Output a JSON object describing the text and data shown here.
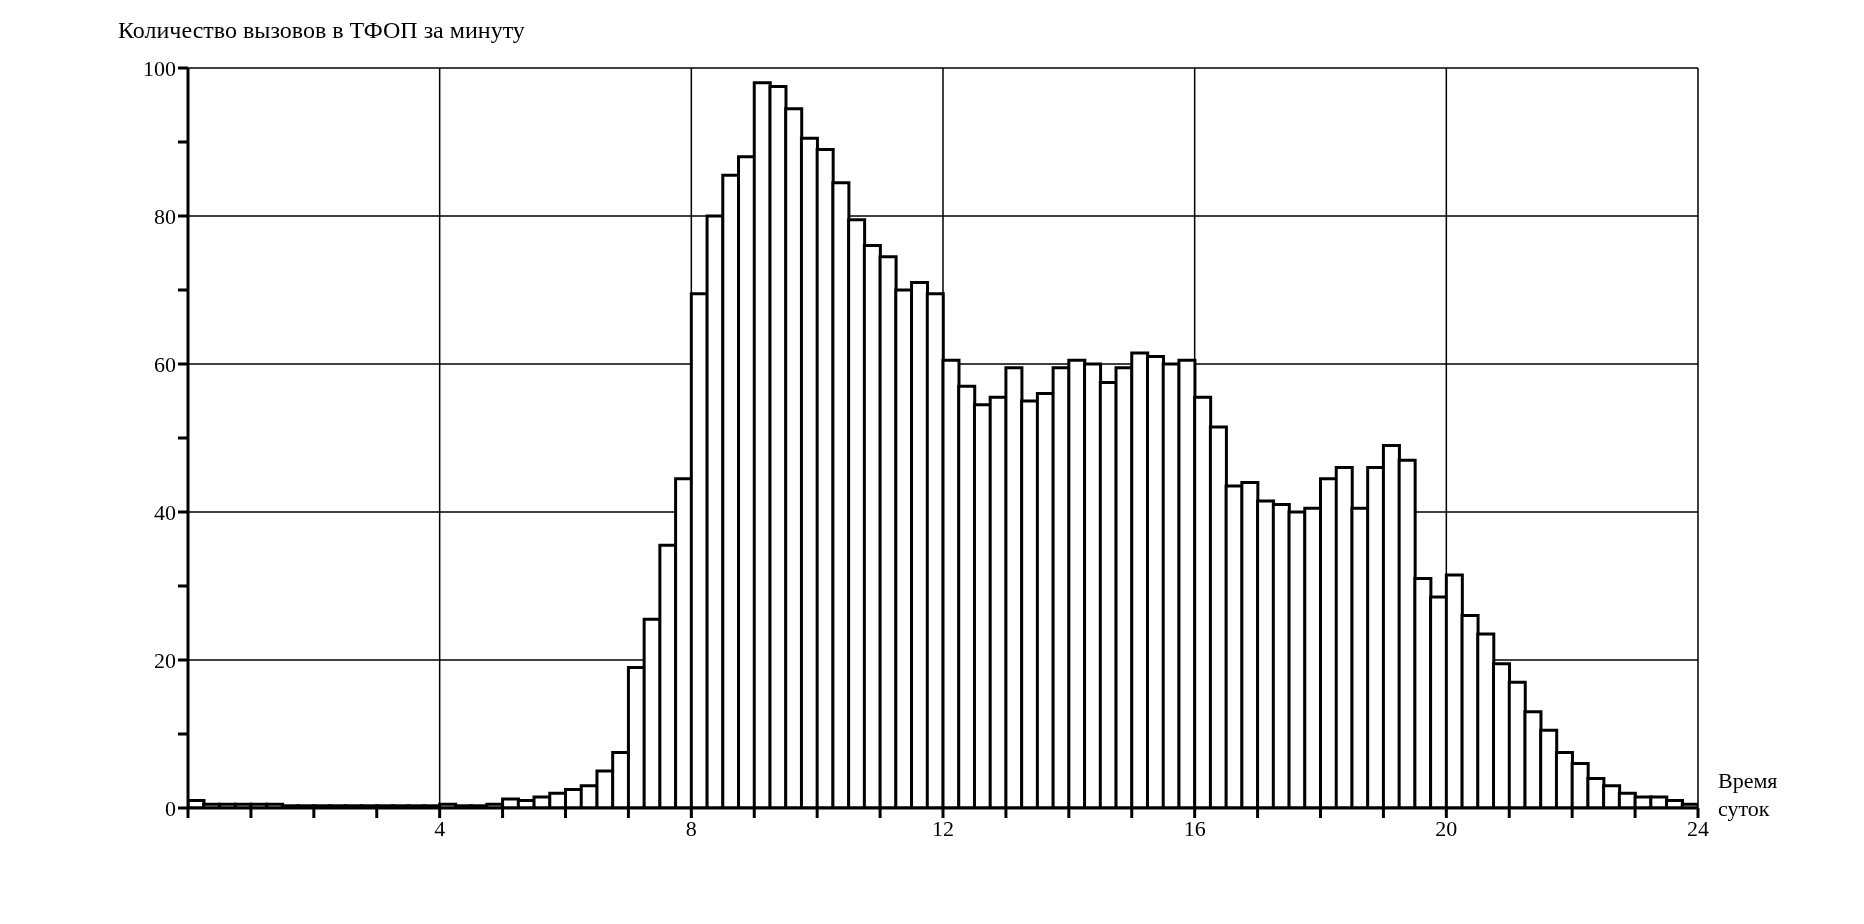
{
  "chart_data": {
    "type": "histogram",
    "ylabel": "Количество вызовов в ТФОП за минуту",
    "xlabel": "Время суток",
    "bins": [
      0,
      0.25,
      0.5,
      0.75,
      1,
      1.25,
      1.5,
      1.75,
      2,
      2.25,
      2.5,
      2.75,
      3,
      3.25,
      3.5,
      3.75,
      4,
      4.25,
      4.5,
      4.75,
      5,
      5.25,
      5.5,
      5.75,
      6,
      6.25,
      6.5,
      6.75,
      7,
      7.25,
      7.5,
      7.75,
      8,
      8.25,
      8.5,
      8.75,
      9,
      9.25,
      9.5,
      9.75,
      10,
      10.25,
      10.5,
      10.75,
      11,
      11.25,
      11.5,
      11.75,
      12,
      12.25,
      12.5,
      12.75,
      13,
      13.25,
      13.5,
      13.75,
      14,
      14.25,
      14.5,
      14.75,
      15,
      15.25,
      15.5,
      15.75,
      16,
      16.25,
      16.5,
      16.75,
      17,
      17.25,
      17.5,
      17.75,
      18,
      18.25,
      18.5,
      18.75,
      19,
      19.25,
      19.5,
      19.75,
      20,
      20.25,
      20.5,
      20.75,
      21,
      21.25,
      21.5,
      21.75,
      22,
      22.25,
      22.5,
      22.75,
      23,
      23.25,
      23.5,
      23.75,
      24
    ],
    "values": [
      1,
      0.5,
      0.5,
      0.5,
      0.5,
      0.5,
      0.3,
      0.3,
      0.3,
      0.3,
      0.3,
      0.3,
      0.3,
      0.3,
      0.3,
      0.3,
      0.5,
      0.3,
      0.3,
      0.5,
      1.2,
      1,
      1.5,
      2,
      2.5,
      3,
      5,
      7.5,
      19,
      25.5,
      35.5,
      44.5,
      69.5,
      80,
      85.5,
      88,
      98,
      97.5,
      94.5,
      90.5,
      89,
      84.5,
      79.5,
      76,
      74.5,
      70,
      71,
      69.5,
      60.5,
      57,
      54.5,
      55.5,
      59.5,
      55,
      56,
      59.5,
      60.5,
      60,
      57.5,
      59.5,
      61.5,
      61,
      60,
      60.5,
      55.5,
      51.5,
      43.5,
      44,
      41.5,
      41,
      40,
      40.5,
      44.5,
      46,
      40.5,
      46,
      49,
      47,
      31,
      28.5,
      31.5,
      26,
      23.5,
      19.5,
      17,
      13,
      10.5,
      7.5,
      6,
      4,
      3,
      2,
      1.5,
      1.5,
      1,
      0.5
    ],
    "color": "#ffffff",
    "xlim": [
      0,
      24
    ],
    "xticks": [
      {
        "value": 0,
        "label": null
      },
      {
        "value": 1,
        "label": null
      },
      {
        "value": 2,
        "label": null
      },
      {
        "value": 3,
        "label": null
      },
      4,
      {
        "value": 5,
        "label": null
      },
      {
        "value": 6,
        "label": null
      },
      {
        "value": 7,
        "label": null
      },
      8,
      {
        "value": 9,
        "label": null
      },
      {
        "value": 10,
        "label": null
      },
      {
        "value": 11,
        "label": null
      },
      12,
      {
        "value": 13,
        "label": null
      },
      {
        "value": 14,
        "label": null
      },
      {
        "value": 15,
        "label": null
      },
      16,
      {
        "value": 17,
        "label": null
      },
      {
        "value": 18,
        "label": null
      },
      {
        "value": 19,
        "label": null
      },
      20,
      {
        "value": 21,
        "label": null
      },
      {
        "value": 22,
        "label": null
      },
      {
        "value": 23,
        "label": null
      },
      24
    ],
    "ylim": [
      0,
      100
    ],
    "yticks": [
      0,
      {
        "value": 10,
        "label": null
      },
      20,
      {
        "value": 30,
        "label": null
      },
      40,
      {
        "value": 50,
        "label": null
      },
      60,
      {
        "value": 70,
        "label": null
      },
      80,
      {
        "value": 90,
        "label": null
      },
      100
    ],
    "grid": true
  }
}
